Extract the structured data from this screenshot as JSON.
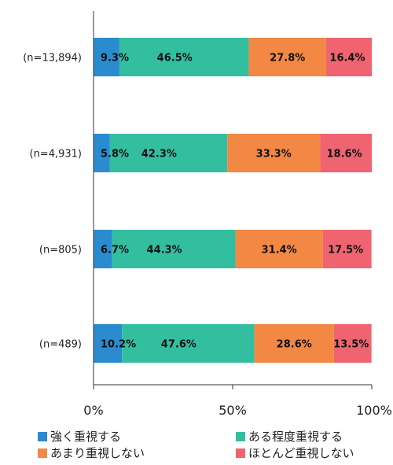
{
  "chart_data": {
    "type": "bar",
    "orientation": "horizontal",
    "stacked": true,
    "categories": [
      "(n=13,894)",
      "(n=4,931)",
      "(n=805)",
      "(n=489)"
    ],
    "series": [
      {
        "name": "強く重視する",
        "color": "#2a8ccf",
        "values": [
          9.3,
          5.8,
          6.7,
          10.2
        ]
      },
      {
        "name": "ある程度重視する",
        "color": "#33bea0",
        "values": [
          46.5,
          42.3,
          44.3,
          47.6
        ]
      },
      {
        "name": "あまり重視しない",
        "color": "#f28844",
        "values": [
          27.8,
          33.3,
          31.4,
          28.6
        ]
      },
      {
        "name": "ほとんど重視しない",
        "color": "#ef6470",
        "values": [
          16.4,
          18.6,
          17.5,
          13.5
        ]
      }
    ],
    "value_labels": [
      [
        "9.3%",
        "46.5%",
        "27.8%",
        "16.4%"
      ],
      [
        "5.8%",
        "42.3%",
        "33.3%",
        "18.6%"
      ],
      [
        "6.7%",
        "44.3%",
        "31.4%",
        "17.5%"
      ],
      [
        "10.2%",
        "47.6%",
        "28.6%",
        "13.5%"
      ]
    ],
    "xlim": [
      0,
      100
    ],
    "xticks": [
      0,
      50,
      100
    ],
    "xtick_labels": [
      "0%",
      "50%",
      "100%"
    ],
    "grid": false,
    "legend_position": "bottom"
  }
}
